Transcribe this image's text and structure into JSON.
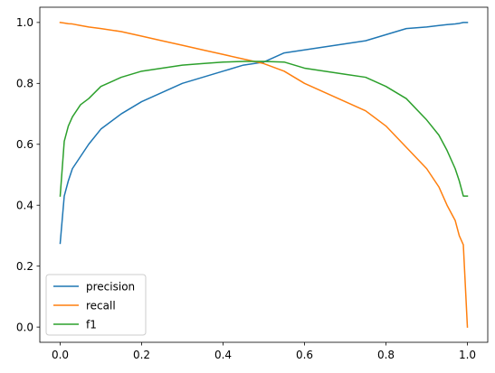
{
  "chart_data": {
    "type": "line",
    "title": "",
    "xlabel": "",
    "ylabel": "",
    "xlim": [
      -0.05,
      1.05
    ],
    "ylim": [
      -0.05,
      1.05
    ],
    "grid": false,
    "legend_position": "lower-left",
    "xticks": [
      0.0,
      0.2,
      0.4,
      0.6,
      0.8,
      1.0
    ],
    "xtick_labels": [
      "0.0",
      "0.2",
      "0.4",
      "0.6",
      "0.8",
      "1.0"
    ],
    "yticks": [
      0.0,
      0.2,
      0.4,
      0.6,
      0.8,
      1.0
    ],
    "ytick_labels": [
      "0.0",
      "0.2",
      "0.4",
      "0.6",
      "0.8",
      "1.0"
    ],
    "x": [
      0.0,
      0.01,
      0.02,
      0.03,
      0.05,
      0.07,
      0.1,
      0.15,
      0.2,
      0.25,
      0.3,
      0.35,
      0.4,
      0.45,
      0.5,
      0.55,
      0.6,
      0.65,
      0.7,
      0.75,
      0.8,
      0.85,
      0.9,
      0.93,
      0.95,
      0.97,
      0.98,
      0.99,
      1.0
    ],
    "series": [
      {
        "name": "precision",
        "color": "#1f77b4",
        "values": [
          0.275,
          0.43,
          0.48,
          0.52,
          0.56,
          0.6,
          0.65,
          0.7,
          0.74,
          0.77,
          0.8,
          0.82,
          0.84,
          0.86,
          0.87,
          0.9,
          0.91,
          0.92,
          0.93,
          0.94,
          0.96,
          0.98,
          0.985,
          0.99,
          0.993,
          0.995,
          0.997,
          1.0,
          1.0
        ]
      },
      {
        "name": "recall",
        "color": "#ff7f0e",
        "values": [
          1.0,
          0.998,
          0.996,
          0.995,
          0.99,
          0.985,
          0.98,
          0.97,
          0.955,
          0.94,
          0.925,
          0.91,
          0.895,
          0.88,
          0.865,
          0.84,
          0.8,
          0.77,
          0.74,
          0.71,
          0.66,
          0.59,
          0.52,
          0.46,
          0.4,
          0.35,
          0.3,
          0.27,
          0.0
        ]
      },
      {
        "name": "f1",
        "color": "#2ca02c",
        "values": [
          0.43,
          0.61,
          0.66,
          0.69,
          0.73,
          0.75,
          0.79,
          0.82,
          0.84,
          0.85,
          0.86,
          0.865,
          0.87,
          0.872,
          0.872,
          0.87,
          0.85,
          0.84,
          0.83,
          0.82,
          0.79,
          0.75,
          0.68,
          0.63,
          0.58,
          0.52,
          0.48,
          0.43,
          0.43
        ]
      }
    ]
  }
}
